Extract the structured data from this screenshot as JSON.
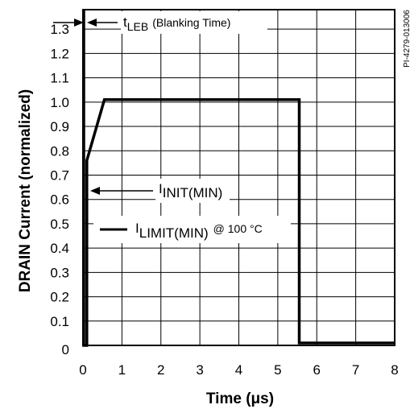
{
  "chart_data": {
    "type": "line",
    "xlabel": "Time (μs)",
    "ylabel": "DRAIN Current (normalized)",
    "xlim": [
      0,
      8
    ],
    "ylim": [
      0,
      1.35
    ],
    "x_ticks": [
      "0",
      "1",
      "2",
      "3",
      "4",
      "5",
      "6",
      "7",
      "8"
    ],
    "y_ticks": [
      "0",
      "0.1",
      "0.2",
      "0.3",
      "0.4",
      "0.5",
      "0.6",
      "0.7",
      "0.8",
      "0.9",
      "1.0",
      "1.1",
      "1.2",
      "1.3"
    ],
    "grid": true,
    "series": [
      {
        "x": [
          0.02,
          0.02,
          0.1,
          0.1,
          0.55,
          5.55,
          5.55,
          8
        ],
        "y": [
          1.38,
          0,
          0,
          0.76,
          1.01,
          1.01,
          0.01,
          0.01
        ]
      }
    ],
    "annotations": {
      "leb": {
        "main": "t",
        "sub": "LEB",
        "rest": "(Blanking Time)"
      },
      "init": {
        "main": "I",
        "sub": "INIT(MIN)"
      },
      "limit": {
        "main": "I",
        "sub": "LIMIT(MIN)",
        "rest": "@ 100 °C"
      }
    },
    "side_label": "PI-4279-013006",
    "line_color": "#000000"
  }
}
